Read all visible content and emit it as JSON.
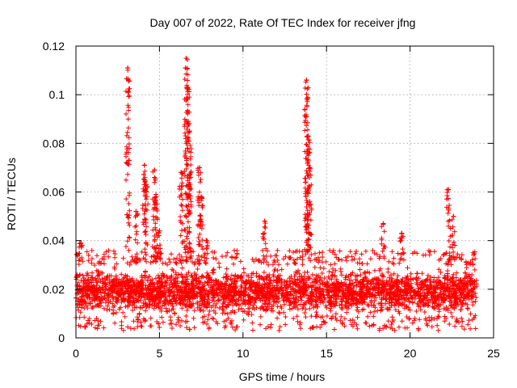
{
  "chart_data": {
    "type": "scatter",
    "title": "Day 007 of 2022, Rate Of TEC Index for receiver jfng",
    "xlabel": "GPS time / hours",
    "ylabel": "ROTI / TECUs",
    "xlim": [
      0,
      25
    ],
    "ylim": [
      0,
      0.12
    ],
    "x_ticks": [
      0,
      5,
      10,
      15,
      20,
      25
    ],
    "x_tick_labels": [
      "0",
      "5",
      "10",
      "15",
      "20",
      "25"
    ],
    "y_ticks": [
      0,
      0.02,
      0.04,
      0.06,
      0.08,
      0.1,
      0.12
    ],
    "y_tick_labels": [
      "0",
      "0.02",
      "0.04",
      "0.06",
      "0.08",
      "0.1",
      "0.12"
    ],
    "grid": true,
    "marker": "+",
    "marker_color": "#ff0000",
    "data_range": [
      0,
      24
    ],
    "baseline": {
      "description": "dense band of ROTI values between about 0.005 and 0.03 TECU over the whole day",
      "low": 0.005,
      "high": 0.03
    },
    "spikes": [
      {
        "x": 0.3,
        "peak": 0.039
      },
      {
        "x": 3.1,
        "peak": 0.111
      },
      {
        "x": 3.6,
        "peak": 0.052
      },
      {
        "x": 4.1,
        "peak": 0.071
      },
      {
        "x": 4.2,
        "peak": 0.063
      },
      {
        "x": 4.7,
        "peak": 0.069
      },
      {
        "x": 4.8,
        "peak": 0.058
      },
      {
        "x": 5.0,
        "peak": 0.044
      },
      {
        "x": 6.3,
        "peak": 0.068
      },
      {
        "x": 6.6,
        "peak": 0.115
      },
      {
        "x": 6.7,
        "peak": 0.103
      },
      {
        "x": 6.8,
        "peak": 0.085
      },
      {
        "x": 7.4,
        "peak": 0.07
      },
      {
        "x": 7.5,
        "peak": 0.058
      },
      {
        "x": 7.8,
        "peak": 0.04
      },
      {
        "x": 11.3,
        "peak": 0.048
      },
      {
        "x": 13.8,
        "peak": 0.106
      },
      {
        "x": 13.9,
        "peak": 0.083
      },
      {
        "x": 14.0,
        "peak": 0.07
      },
      {
        "x": 13.85,
        "peak": 0.051
      },
      {
        "x": 18.4,
        "peak": 0.047
      },
      {
        "x": 19.5,
        "peak": 0.043
      },
      {
        "x": 22.3,
        "peak": 0.061
      },
      {
        "x": 22.6,
        "peak": 0.05
      }
    ]
  }
}
